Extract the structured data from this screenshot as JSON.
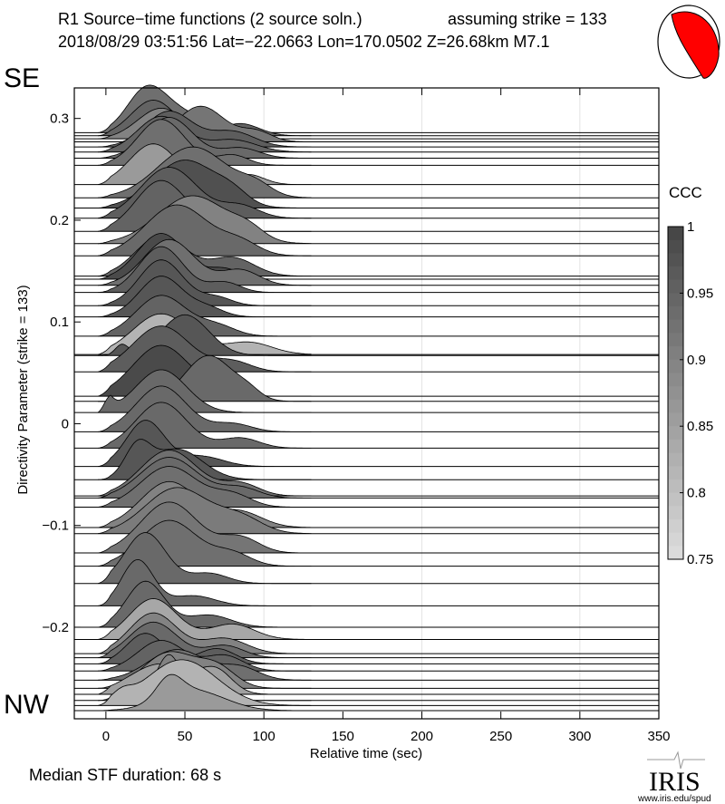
{
  "chart_data": {
    "type": "area",
    "title_line1": "R1 Source−time functions (2 source soln.)",
    "title_strike": "assuming strike = 133",
    "title_line2": "2018/08/29 03:51:56  Lat=−22.0663 Lon=170.0502  Z=26.68km  M7.1",
    "xlabel": "Relative time (sec)",
    "ylabel": "Directivity Parameter (strike = 133)",
    "xlim": [
      -20,
      350
    ],
    "ylim": [
      -0.29,
      0.33
    ],
    "xticks": [
      0,
      50,
      100,
      150,
      200,
      250,
      300,
      350
    ],
    "yticks": [
      -0.2,
      -0.1,
      0,
      0.1,
      0.2,
      0.3
    ],
    "ytick_labels": [
      "−0.2",
      "−0.1",
      "0",
      "0.1",
      "0.2",
      "0.3"
    ],
    "vertical_grid": [
      100,
      200,
      300
    ],
    "label_top": "SE",
    "label_bottom": "NW",
    "colorbar": {
      "title": "CCC",
      "range": [
        0.75,
        1
      ],
      "ticks": [
        "1",
        "0.95",
        "0.9",
        "0.85",
        "0.8",
        "0.75"
      ],
      "tick_values": [
        1,
        0.95,
        0.9,
        0.85,
        0.8,
        0.75
      ],
      "colormap": "gray (light=0.75, dark=1)"
    },
    "traces_note_units": "p = directivity parameter; pulses = [center sec, width sec, amplitude]",
    "traces": [
      {
        "p": 0.286,
        "ccc": 0.93,
        "pulses": [
          [
            25,
            12,
            0.035
          ],
          [
            45,
            18,
            0.02
          ]
        ]
      },
      {
        "p": 0.283,
        "ccc": 0.95,
        "pulses": [
          [
            30,
            14,
            0.035
          ],
          [
            85,
            12,
            0.012
          ]
        ]
      },
      {
        "p": 0.28,
        "ccc": 0.9,
        "pulses": [
          [
            35,
            15,
            0.03
          ],
          [
            70,
            10,
            0.012
          ]
        ]
      },
      {
        "p": 0.277,
        "ccc": 0.92,
        "pulses": [
          [
            60,
            15,
            0.035
          ],
          [
            95,
            10,
            0.01
          ]
        ]
      },
      {
        "p": 0.272,
        "ccc": 0.96,
        "pulses": [
          [
            40,
            15,
            0.035
          ],
          [
            80,
            14,
            0.015
          ]
        ]
      },
      {
        "p": 0.267,
        "ccc": 0.95,
        "pulses": [
          [
            35,
            15,
            0.035
          ],
          [
            80,
            15,
            0.012
          ]
        ]
      },
      {
        "p": 0.261,
        "ccc": 0.94,
        "pulses": [
          [
            40,
            15,
            0.04
          ],
          [
            85,
            12,
            0.01
          ]
        ]
      },
      {
        "p": 0.254,
        "ccc": 0.93,
        "pulses": [
          [
            35,
            15,
            0.045
          ],
          [
            80,
            10,
            0.01
          ]
        ]
      },
      {
        "p": 0.235,
        "ccc": 0.86,
        "pulses": [
          [
            30,
            15,
            0.04
          ],
          [
            90,
            10,
            0.01
          ]
        ]
      },
      {
        "p": 0.222,
        "ccc": 0.93,
        "pulses": [
          [
            55,
            22,
            0.05
          ],
          [
            95,
            10,
            0.01
          ]
        ]
      },
      {
        "p": 0.212,
        "ccc": 0.98,
        "pulses": [
          [
            50,
            20,
            0.047
          ],
          [
            80,
            10,
            0.01
          ]
        ]
      },
      {
        "p": 0.202,
        "ccc": 0.96,
        "pulses": [
          [
            40,
            18,
            0.05
          ],
          [
            85,
            12,
            0.012
          ]
        ]
      },
      {
        "p": 0.189,
        "ccc": 0.95,
        "pulses": [
          [
            35,
            16,
            0.05
          ],
          [
            70,
            10,
            0.01
          ]
        ]
      },
      {
        "p": 0.177,
        "ccc": 0.9,
        "pulses": [
          [
            55,
            22,
            0.047
          ],
          [
            90,
            10,
            0.01
          ]
        ]
      },
      {
        "p": 0.165,
        "ccc": 0.94,
        "pulses": [
          [
            45,
            20,
            0.05
          ],
          [
            85,
            12,
            0.012
          ]
        ]
      },
      {
        "p": 0.145,
        "ccc": 0.95,
        "pulses": [
          [
            35,
            16,
            0.04
          ],
          [
            80,
            14,
            0.018
          ]
        ]
      },
      {
        "p": 0.142,
        "ccc": 0.99,
        "pulses": [
          [
            35,
            15,
            0.045
          ],
          [
            75,
            10,
            0.01
          ]
        ]
      },
      {
        "p": 0.136,
        "ccc": 0.93,
        "pulses": [
          [
            40,
            16,
            0.045
          ],
          [
            85,
            12,
            0.015
          ]
        ]
      },
      {
        "p": 0.129,
        "ccc": 0.96,
        "pulses": [
          [
            35,
            14,
            0.045
          ],
          [
            75,
            10,
            0.01
          ]
        ]
      },
      {
        "p": 0.116,
        "ccc": 0.97,
        "pulses": [
          [
            35,
            14,
            0.045
          ],
          [
            70,
            10,
            0.008
          ]
        ]
      },
      {
        "p": 0.105,
        "ccc": 0.97,
        "pulses": [
          [
            35,
            14,
            0.04
          ],
          [
            65,
            10,
            0.008
          ]
        ]
      },
      {
        "p": 0.086,
        "ccc": 0.95,
        "pulses": [
          [
            35,
            16,
            0.04
          ],
          [
            70,
            12,
            0.01
          ]
        ]
      },
      {
        "p": 0.068,
        "ccc": 0.82,
        "pulses": [
          [
            35,
            18,
            0.04
          ],
          [
            90,
            15,
            0.012
          ]
        ]
      },
      {
        "p": 0.067,
        "ccc": 0.97,
        "pulses": [
          [
            50,
            15,
            0.04
          ],
          [
            10,
            4,
            0.01
          ]
        ]
      },
      {
        "p": 0.051,
        "ccc": 0.96,
        "pulses": [
          [
            35,
            18,
            0.045
          ],
          [
            80,
            12,
            0.01
          ]
        ]
      },
      {
        "p": 0.027,
        "ccc": 0.99,
        "pulses": [
          [
            35,
            18,
            0.05
          ],
          [
            75,
            10,
            0.01
          ]
        ]
      },
      {
        "p": 0.022,
        "ccc": 0.94,
        "pulses": [
          [
            65,
            15,
            0.045
          ],
          [
            90,
            8,
            0.008
          ]
        ]
      },
      {
        "p": 0.011,
        "ccc": 0.94,
        "pulses": [
          [
            35,
            16,
            0.042
          ],
          [
            0,
            4,
            0.015
          ]
        ]
      },
      {
        "p": -0.008,
        "ccc": 0.94,
        "pulses": [
          [
            35,
            16,
            0.045
          ],
          [
            80,
            12,
            0.008
          ]
        ]
      },
      {
        "p": -0.024,
        "ccc": 0.94,
        "pulses": [
          [
            35,
            16,
            0.045
          ],
          [
            85,
            12,
            0.01
          ]
        ]
      },
      {
        "p": -0.042,
        "ccc": 0.97,
        "pulses": [
          [
            25,
            12,
            0.045
          ],
          [
            60,
            14,
            0.01
          ]
        ]
      },
      {
        "p": -0.055,
        "ccc": 0.97,
        "pulses": [
          [
            20,
            8,
            0.03
          ],
          [
            45,
            16,
            0.03
          ]
        ]
      },
      {
        "p": -0.071,
        "ccc": 0.93,
        "pulses": [
          [
            40,
            18,
            0.045
          ],
          [
            85,
            12,
            0.012
          ]
        ]
      },
      {
        "p": -0.073,
        "ccc": 0.94,
        "pulses": [
          [
            40,
            18,
            0.04
          ],
          [
            85,
            12,
            0.01
          ]
        ]
      },
      {
        "p": -0.082,
        "ccc": 0.93,
        "pulses": [
          [
            40,
            18,
            0.04
          ],
          [
            80,
            12,
            0.012
          ]
        ]
      },
      {
        "p": -0.102,
        "ccc": 0.9,
        "pulses": [
          [
            40,
            18,
            0.045
          ],
          [
            85,
            14,
            0.015
          ]
        ]
      },
      {
        "p": -0.108,
        "ccc": 0.91,
        "pulses": [
          [
            45,
            20,
            0.045
          ],
          [
            85,
            14,
            0.015
          ]
        ]
      },
      {
        "p": -0.127,
        "ccc": 0.92,
        "pulses": [
          [
            40,
            18,
            0.05
          ],
          [
            85,
            12,
            0.015
          ]
        ]
      },
      {
        "p": -0.14,
        "ccc": 0.93,
        "pulses": [
          [
            40,
            18,
            0.045
          ],
          [
            80,
            12,
            0.012
          ]
        ]
      },
      {
        "p": -0.157,
        "ccc": 0.94,
        "pulses": [
          [
            25,
            13,
            0.05
          ],
          [
            65,
            12,
            0.01
          ]
        ]
      },
      {
        "p": -0.179,
        "ccc": 0.94,
        "pulses": [
          [
            20,
            10,
            0.045
          ],
          [
            55,
            14,
            0.01
          ]
        ]
      },
      {
        "p": -0.2,
        "ccc": 0.94,
        "pulses": [
          [
            25,
            12,
            0.045
          ],
          [
            65,
            14,
            0.012
          ]
        ]
      },
      {
        "p": -0.212,
        "ccc": 0.84,
        "pulses": [
          [
            30,
            15,
            0.04
          ],
          [
            80,
            14,
            0.015
          ]
        ]
      },
      {
        "p": -0.226,
        "ccc": 0.9,
        "pulses": [
          [
            30,
            15,
            0.04
          ],
          [
            75,
            14,
            0.015
          ]
        ]
      },
      {
        "p": -0.23,
        "ccc": 0.94,
        "pulses": [
          [
            30,
            15,
            0.035
          ],
          [
            75,
            12,
            0.012
          ]
        ]
      },
      {
        "p": -0.236,
        "ccc": 0.96,
        "pulses": [
          [
            25,
            12,
            0.03
          ],
          [
            70,
            12,
            0.015
          ]
        ]
      },
      {
        "p": -0.243,
        "ccc": 0.95,
        "pulses": [
          [
            35,
            15,
            0.03
          ],
          [
            75,
            12,
            0.015
          ]
        ]
      },
      {
        "p": -0.252,
        "ccc": 0.93,
        "pulses": [
          [
            45,
            18,
            0.03
          ],
          [
            85,
            12,
            0.012
          ]
        ]
      },
      {
        "p": -0.26,
        "ccc": 0.9,
        "pulses": [
          [
            40,
            16,
            0.035
          ],
          [
            70,
            12,
            0.02
          ]
        ]
      },
      {
        "p": -0.266,
        "ccc": 0.85,
        "pulses": [
          [
            35,
            20,
            0.03
          ],
          [
            70,
            10,
            0.02
          ]
        ]
      },
      {
        "p": -0.272,
        "ccc": 0.9,
        "pulses": [
          [
            40,
            8,
            0.045
          ],
          [
            15,
            8,
            0.01
          ]
        ]
      },
      {
        "p": -0.277,
        "ccc": 0.82,
        "pulses": [
          [
            48,
            22,
            0.045
          ],
          [
            10,
            6,
            0.008
          ]
        ]
      },
      {
        "p": -0.282,
        "ccc": 0.86,
        "pulses": [
          [
            40,
            8,
            0.02
          ],
          [
            55,
            20,
            0.02
          ]
        ]
      }
    ]
  },
  "footer": {
    "median_duration": "Median STF duration: 68 s"
  },
  "logo": {
    "name": "IRIS",
    "url_text": "www.iris.edu/spud"
  },
  "beachball": {
    "color": "#ff0000"
  }
}
